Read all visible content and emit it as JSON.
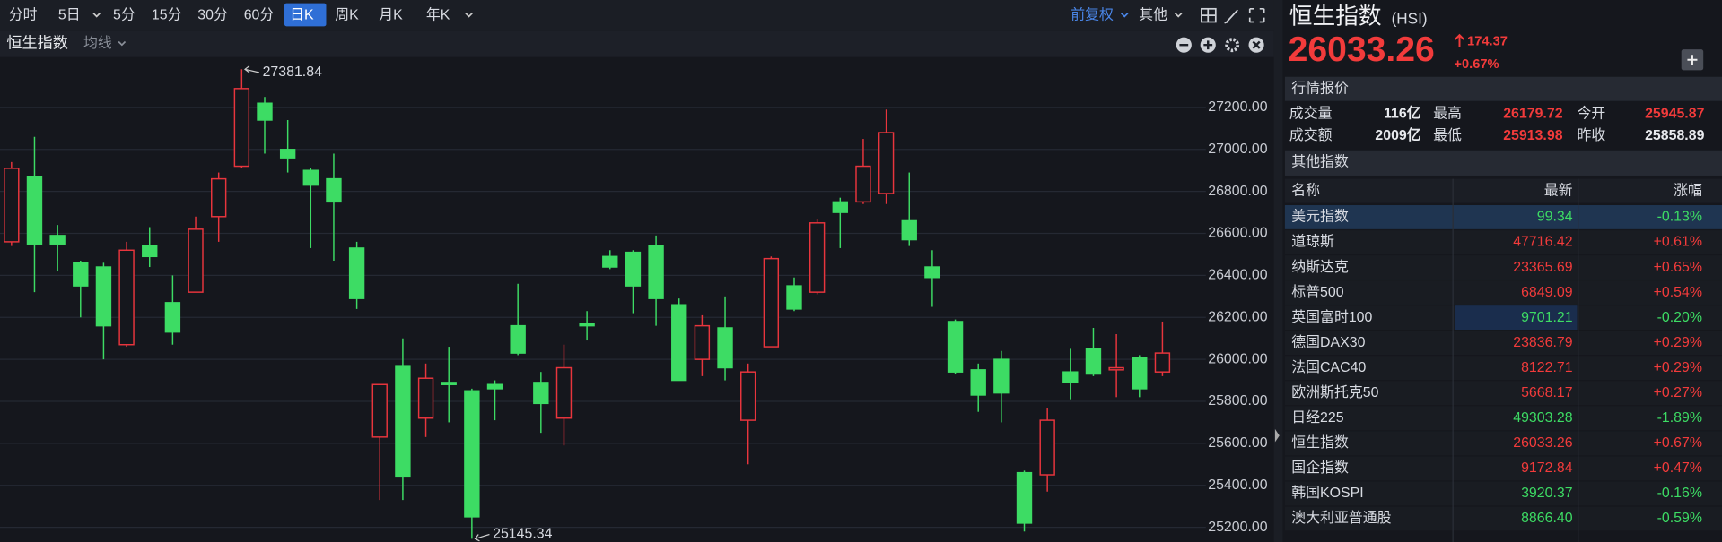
{
  "toolbar": {
    "items": [
      "分时",
      "5日",
      "5分",
      "15分",
      "30分",
      "60分",
      "日K",
      "周K",
      "月K",
      "年K"
    ],
    "adjust": "前复权",
    "other": "其他"
  },
  "chart_header": {
    "name": "恒生指数",
    "ma": "均线"
  },
  "chart_data": {
    "type": "candlestick",
    "up_color": "#e8353d",
    "down_color": "#3ddc64",
    "grid": true,
    "open": [
      26560,
      26870,
      26590,
      26460,
      26440,
      26070,
      26540,
      26270,
      26320,
      26680,
      26920,
      27220,
      27000,
      26900,
      26860,
      26530,
      25630,
      25970,
      25720,
      25890,
      25850,
      25880,
      26160,
      25890,
      25720,
      26170,
      26490,
      26510,
      26540,
      26260,
      26000,
      26150,
      25710,
      26060,
      26350,
      26320,
      26750,
      26750,
      26790,
      26660,
      26440,
      26180,
      25950,
      26000,
      25460,
      25450,
      25940,
      26050,
      25950,
      26010,
      25940
    ],
    "high": [
      26940,
      27060,
      26640,
      26470,
      26460,
      26560,
      26630,
      26400,
      26680,
      26890,
      27381.84,
      27250,
      27140,
      26910,
      26980,
      26560,
      25880,
      26100,
      25980,
      26060,
      25860,
      25900,
      26360,
      25940,
      26070,
      26230,
      26520,
      26520,
      26590,
      26290,
      26210,
      26300,
      25980,
      26490,
      26390,
      26670,
      26770,
      27050,
      27190,
      26890,
      26520,
      26190,
      25980,
      26040,
      25470,
      25770,
      26050,
      26150,
      26120,
      26020,
      26180
    ],
    "low": [
      26540,
      26320,
      26420,
      26200,
      26000,
      26060,
      26440,
      26070,
      26320,
      26560,
      26910,
      26980,
      26890,
      26530,
      26470,
      26240,
      25330,
      25330,
      25630,
      25700,
      25145.34,
      25710,
      26020,
      25650,
      25590,
      26090,
      26430,
      26220,
      26160,
      25900,
      25920,
      25900,
      25500,
      26060,
      26230,
      26310,
      26530,
      26740,
      26740,
      26540,
      26250,
      25930,
      25750,
      25700,
      25180,
      25370,
      25810,
      25920,
      25820,
      25820,
      25920
    ],
    "close": [
      26910,
      26550,
      26550,
      26350,
      26160,
      26520,
      26490,
      26130,
      26620,
      26860,
      27290,
      27140,
      26960,
      26830,
      26750,
      26290,
      25880,
      25440,
      25910,
      25880,
      25250,
      25860,
      26030,
      25790,
      25960,
      26160,
      26440,
      26350,
      26290,
      25900,
      26160,
      25960,
      25940,
      26480,
      26240,
      26650,
      26700,
      26920,
      27080,
      26570,
      26390,
      25940,
      25830,
      25840,
      25220,
      25710,
      25890,
      25930,
      25960,
      25860,
      26030
    ],
    "ylim": [
      25130,
      27440
    ],
    "yticks": [
      {
        "value": 25200,
        "label": "25200.00"
      },
      {
        "value": 25400,
        "label": "25400.00"
      },
      {
        "value": 25600,
        "label": "25600.00"
      },
      {
        "value": 25800,
        "label": "25800.00"
      },
      {
        "value": 26000,
        "label": "26000.00"
      },
      {
        "value": 26200,
        "label": "26200.00"
      },
      {
        "value": 26400,
        "label": "26400.00"
      },
      {
        "value": 26600,
        "label": "26600.00"
      },
      {
        "value": 26800,
        "label": "26800.00"
      },
      {
        "value": 27000,
        "label": "27000.00"
      },
      {
        "value": 27200,
        "label": "27200.00"
      }
    ]
  },
  "quote": {
    "title": "恒生指数",
    "code": "(HSI)",
    "price": "26033.26",
    "change": "174.37",
    "change_pct": "+0.67%"
  },
  "market": {
    "header": "行情报价",
    "rows": [
      [
        "成交量",
        "116亿",
        "最高",
        "26179.72",
        "今开",
        "25945.87"
      ],
      [
        "成交额",
        "2009亿",
        "最低",
        "25913.98",
        "昨收",
        "25858.89"
      ]
    ]
  },
  "table": {
    "title": "其他指数",
    "columns": [
      "名称",
      "最新",
      "涨幅"
    ],
    "rows": [
      [
        "美元指数",
        "99.34",
        "-0.13%"
      ],
      [
        "道琼斯",
        "47716.42",
        "+0.61%"
      ],
      [
        "纳斯达克",
        "23365.69",
        "+0.65%"
      ],
      [
        "标普500",
        "6849.09",
        "+0.54%"
      ],
      [
        "英国富时100",
        "9701.21",
        "-0.20%"
      ],
      [
        "德国DAX30",
        "23836.79",
        "+0.29%"
      ],
      [
        "法国CAC40",
        "8122.71",
        "+0.29%"
      ],
      [
        "欧洲斯托克50",
        "5668.17",
        "+0.27%"
      ],
      [
        "日经225",
        "49303.28",
        "-1.89%"
      ],
      [
        "恒生指数",
        "26033.26",
        "+0.67%"
      ],
      [
        "国企指数",
        "9172.84",
        "+0.47%"
      ],
      [
        "韩国KOSPI",
        "3920.37",
        "-0.16%"
      ],
      [
        "澳大利亚普通股",
        "8866.40",
        "-0.59%"
      ]
    ]
  }
}
